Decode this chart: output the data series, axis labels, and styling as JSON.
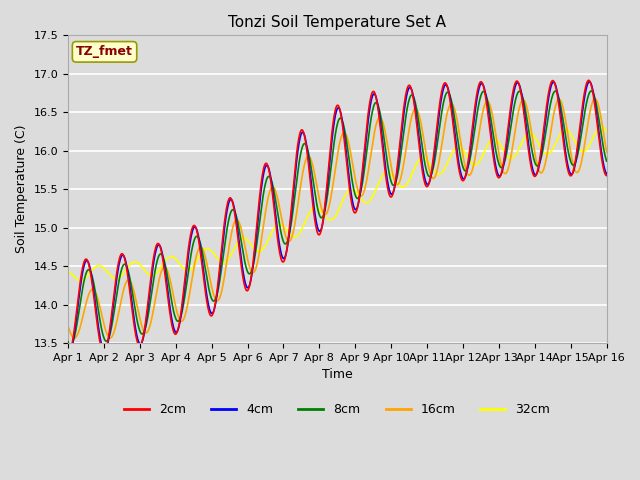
{
  "title": "Tonzi Soil Temperature Set A",
  "xlabel": "Time",
  "ylabel": "Soil Temperature (C)",
  "xlim": [
    0,
    15
  ],
  "ylim": [
    13.5,
    17.5
  ],
  "background_color": "#dcdcdc",
  "plot_bg_color": "#dcdcdc",
  "grid_color": "white",
  "annotation_text": "TZ_fmet",
  "annotation_color": "#8b0000",
  "annotation_bg": "#ffffcc",
  "legend_labels": [
    "2cm",
    "4cm",
    "8cm",
    "16cm",
    "32cm"
  ],
  "legend_colors": [
    "red",
    "blue",
    "green",
    "orange",
    "yellow"
  ],
  "tick_labels": [
    "Apr 1",
    "Apr 2",
    "Apr 3",
    "Apr 4",
    "Apr 5",
    "Apr 6",
    "Apr 7",
    "Apr 8",
    "Apr 9",
    "Apr 10",
    "Apr 11",
    "Apr 12",
    "Apr 13",
    "Apr 14",
    "Apr 15",
    "Apr 16"
  ],
  "tick_positions": [
    0,
    1,
    2,
    3,
    4,
    5,
    6,
    7,
    8,
    9,
    10,
    11,
    12,
    13,
    14,
    15
  ],
  "n_points": 960
}
